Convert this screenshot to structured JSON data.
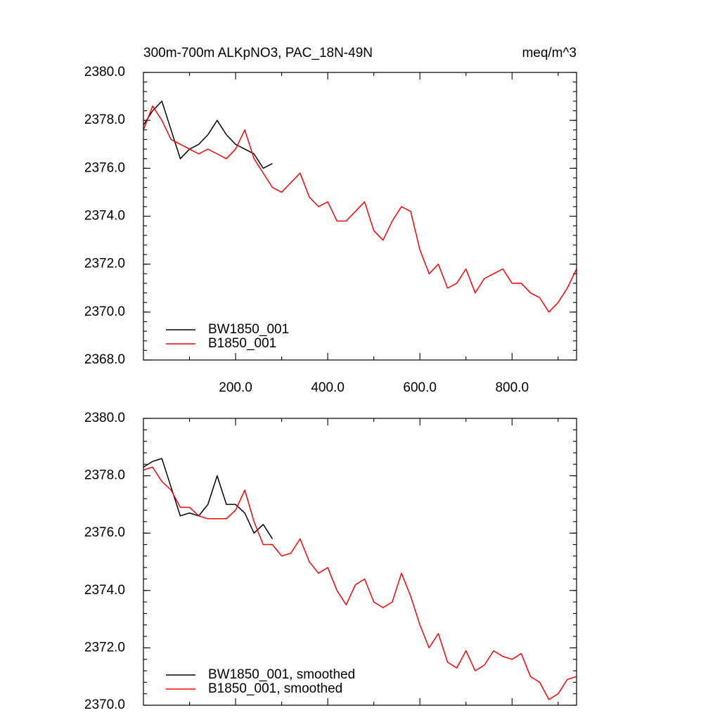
{
  "chart_data": [
    {
      "type": "line",
      "title": "300m-700m ALKpNO3, PAC_18N-49N",
      "units": "meq/m^3",
      "x": [
        0,
        20,
        40,
        60,
        80,
        100,
        120,
        140,
        160,
        180,
        200,
        220,
        240,
        260,
        280,
        300,
        320,
        340,
        360,
        380,
        400,
        420,
        440,
        460,
        480,
        500,
        520,
        540,
        560,
        580,
        600,
        620,
        640,
        660,
        680,
        700,
        720,
        740,
        760,
        780,
        800,
        820,
        840,
        860,
        880,
        900,
        920,
        940
      ],
      "series": [
        {
          "name": "BW1850_001",
          "color": "#000000",
          "values": [
            2377.8,
            2378.4,
            2378.8,
            2377.6,
            2376.4,
            2376.8,
            2377.0,
            2377.4,
            2378.0,
            2377.4,
            2377.0,
            2376.8,
            2376.6,
            2376.0,
            2376.2,
            null,
            null,
            null,
            null,
            null,
            null,
            null,
            null,
            null,
            null,
            null,
            null,
            null,
            null,
            null,
            null,
            null,
            null,
            null,
            null,
            null,
            null,
            null,
            null,
            null,
            null,
            null,
            null,
            null,
            null,
            null,
            null,
            null
          ]
        },
        {
          "name": "B1850_001",
          "color": "#ff0000",
          "values": [
            2377.6,
            2378.6,
            2378.0,
            2377.2,
            2377.0,
            2376.8,
            2376.6,
            2376.8,
            2376.6,
            2376.4,
            2376.8,
            2377.6,
            2376.4,
            2375.8,
            2375.2,
            2375.0,
            2375.4,
            2375.8,
            2374.8,
            2374.4,
            2374.6,
            2373.8,
            2373.8,
            2374.2,
            2374.6,
            2373.4,
            2373.0,
            2373.8,
            2374.4,
            2374.2,
            2372.6,
            2371.6,
            2372.0,
            2371.0,
            2371.2,
            2371.8,
            2370.8,
            2371.4,
            2371.6,
            2371.8,
            2371.2,
            2371.2,
            2370.8,
            2370.6,
            2370.0,
            2370.4,
            2371.0,
            2371.8
          ]
        }
      ],
      "xlim": [
        0,
        940
      ],
      "xticks": [
        {
          "value": 200,
          "label": "200.0"
        },
        {
          "value": 400,
          "label": "400.0"
        },
        {
          "value": 600,
          "label": "600.0"
        },
        {
          "value": 800,
          "label": "800.0"
        }
      ],
      "ylim": [
        2368,
        2380
      ],
      "yticks": [
        {
          "value": 2368,
          "label": "2368.0"
        },
        {
          "value": 2370,
          "label": "2370.0"
        },
        {
          "value": 2372,
          "label": "2372.0"
        },
        {
          "value": 2374,
          "label": "2374.0"
        },
        {
          "value": 2376,
          "label": "2376.0"
        },
        {
          "value": 2378,
          "label": "2378.0"
        },
        {
          "value": 2380,
          "label": "2380.0"
        }
      ],
      "legend": "lower left"
    },
    {
      "type": "line",
      "x": [
        0,
        20,
        40,
        60,
        80,
        100,
        120,
        140,
        160,
        180,
        200,
        220,
        240,
        260,
        280,
        300,
        320,
        340,
        360,
        380,
        400,
        420,
        440,
        460,
        480,
        500,
        520,
        540,
        560,
        580,
        600,
        620,
        640,
        660,
        680,
        700,
        720,
        740,
        760,
        780,
        800,
        820,
        840,
        860,
        880,
        900,
        920,
        940
      ],
      "series": [
        {
          "name": "BW1850_001, smoothed",
          "color": "#000000",
          "values": [
            2378.3,
            2378.5,
            2378.6,
            2377.6,
            2376.6,
            2376.7,
            2376.6,
            2377.0,
            2378.0,
            2377.0,
            2377.0,
            2376.7,
            2376.0,
            2376.3,
            2375.8,
            null,
            null,
            null,
            null,
            null,
            null,
            null,
            null,
            null,
            null,
            null,
            null,
            null,
            null,
            null,
            null,
            null,
            null,
            null,
            null,
            null,
            null,
            null,
            null,
            null,
            null,
            null,
            null,
            null,
            null,
            null,
            null,
            null
          ]
        },
        {
          "name": "B1850_001, smoothed",
          "color": "#ff0000",
          "values": [
            2378.2,
            2378.3,
            2377.8,
            2377.5,
            2376.9,
            2376.9,
            2376.6,
            2376.5,
            2376.5,
            2376.5,
            2376.8,
            2377.5,
            2376.4,
            2375.6,
            2375.6,
            2375.2,
            2375.3,
            2375.8,
            2375.0,
            2374.6,
            2374.8,
            2374.0,
            2373.5,
            2374.2,
            2374.4,
            2373.6,
            2373.4,
            2373.6,
            2374.6,
            2373.8,
            2372.8,
            2372.0,
            2372.5,
            2371.5,
            2371.3,
            2371.9,
            2371.2,
            2371.4,
            2371.9,
            2371.7,
            2371.6,
            2371.8,
            2371.0,
            2370.8,
            2370.2,
            2370.4,
            2370.9,
            2371.0
          ]
        }
      ],
      "xlim": [
        0,
        940
      ],
      "xticks": [
        200,
        400,
        600,
        800
      ],
      "ylim": [
        2370,
        2380
      ],
      "yticks": [
        {
          "value": 2370,
          "label": "2370.0"
        },
        {
          "value": 2372,
          "label": "2372.0"
        },
        {
          "value": 2374,
          "label": "2374.0"
        },
        {
          "value": 2376,
          "label": "2376.0"
        },
        {
          "value": 2378,
          "label": "2378.0"
        },
        {
          "value": 2380,
          "label": "2380.0"
        }
      ],
      "legend": "lower left"
    }
  ]
}
